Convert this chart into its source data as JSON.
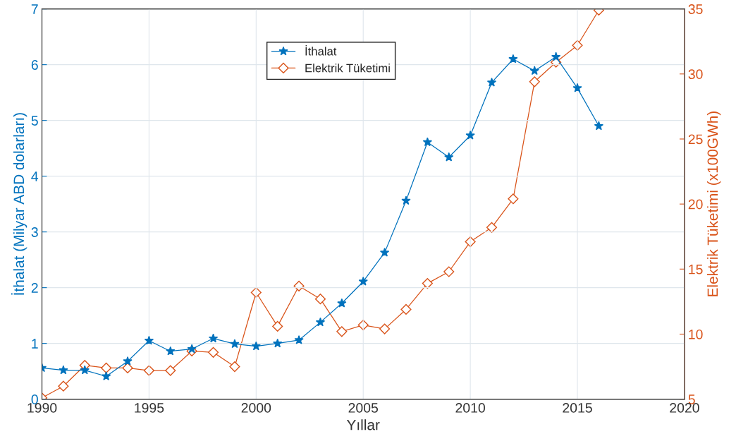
{
  "chart_data": {
    "type": "line",
    "xlabel": "Yıllar",
    "ylabel": "İthalat (Milyar ABD dolarları)",
    "y2label": "Elektrik Tüketimi (x100GWh)",
    "x": [
      1990,
      1991,
      1992,
      1993,
      1994,
      1995,
      1996,
      1997,
      1998,
      1999,
      2000,
      2001,
      2002,
      2003,
      2004,
      2005,
      2006,
      2007,
      2008,
      2009,
      2010,
      2011,
      2012,
      2013,
      2014,
      2015,
      2016
    ],
    "series": [
      {
        "name": "İthalat",
        "color": "#0072bd",
        "marker": "star",
        "values": [
          0.56,
          0.52,
          0.52,
          0.41,
          0.68,
          1.05,
          0.86,
          0.9,
          1.09,
          0.99,
          0.95,
          1.0,
          1.06,
          1.38,
          1.72,
          2.11,
          2.63,
          3.56,
          4.61,
          4.34,
          4.73,
          5.68,
          6.1,
          5.89,
          6.14,
          5.58,
          4.9
        ]
      },
      {
        "name": "Elektrik Tüketimi",
        "color": "#d95319",
        "marker": "diamond",
        "axis": "y2",
        "values": [
          5.1,
          6.0,
          7.6,
          7.4,
          7.4,
          7.2,
          7.2,
          8.7,
          8.6,
          7.5,
          13.2,
          10.6,
          13.7,
          12.7,
          10.2,
          10.7,
          10.4,
          11.9,
          13.9,
          14.8,
          17.1,
          18.2,
          20.4,
          29.4,
          30.9,
          32.2,
          34.9
        ]
      }
    ],
    "xlim": [
      1990,
      2020
    ],
    "xticks": [
      1990,
      1995,
      2000,
      2005,
      2010,
      2015,
      2020
    ],
    "ylim": [
      0,
      7
    ],
    "yticks": [
      0,
      1,
      2,
      3,
      4,
      5,
      6,
      7
    ],
    "y2lim": [
      5,
      35
    ],
    "y2ticks": [
      5,
      10,
      15,
      20,
      25,
      30,
      35
    ],
    "grid": true,
    "legend": "top",
    "line_style": "solid"
  }
}
